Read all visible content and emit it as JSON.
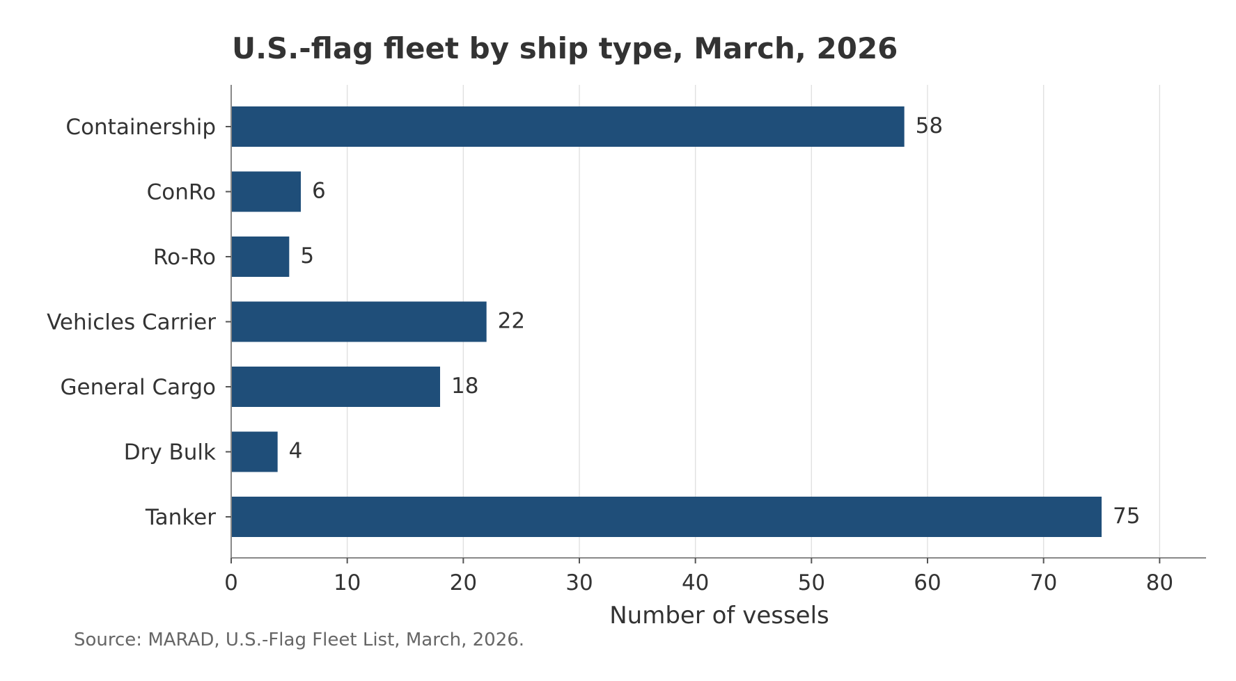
{
  "chart_data": {
    "type": "bar",
    "orientation": "horizontal",
    "title": "U.S.-flag fleet by ship type, March, 2026",
    "xlabel": "Number of vessels",
    "ylabel": "",
    "categories": [
      "Containership",
      "ConRo",
      "Ro-Ro",
      "Vehicles Carrier",
      "General Cargo",
      "Dry Bulk",
      "Tanker"
    ],
    "values": [
      58,
      6,
      5,
      22,
      18,
      4,
      75
    ],
    "xlim": [
      0,
      84
    ],
    "xticks": [
      0,
      10,
      20,
      30,
      40,
      50,
      60,
      70,
      80
    ],
    "grid": "vertical",
    "legend": "none",
    "bar_color": "#1f4e79",
    "source": "Source: MARAD, U.S.-Flag Fleet List, March, 2026."
  }
}
